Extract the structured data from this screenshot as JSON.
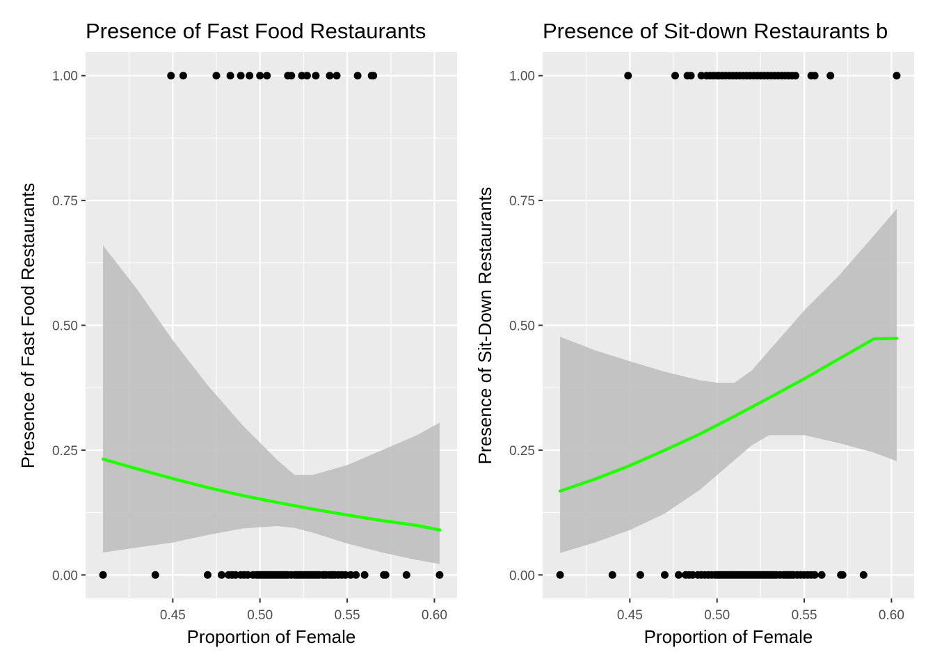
{
  "colors": {
    "panel_background": "#ebebeb",
    "grid": "#ffffff",
    "points": "#000000",
    "fit_line": "#22ff00",
    "confidence_band": "#bfbfbf"
  },
  "chart_data": [
    {
      "type": "scatter",
      "title": "Presence of Fast Food Restaurants",
      "xlabel": "Proportion of Female",
      "ylabel": "Presence of Fast Food Restaurants",
      "xlim": [
        0.4,
        0.613
      ],
      "ylim": [
        -0.047,
        1.047
      ],
      "x_ticks": [
        "0.45",
        "0.50",
        "0.55",
        "0.60"
      ],
      "y_ticks": [
        "0.00",
        "0.25",
        "0.50",
        "0.75",
        "1.00"
      ],
      "grid": true,
      "points_at_1": [
        0.449,
        0.456,
        0.475,
        0.483,
        0.489,
        0.494,
        0.5,
        0.504,
        0.516,
        0.518,
        0.524,
        0.527,
        0.532,
        0.54,
        0.544,
        0.556,
        0.564,
        0.565
      ],
      "points_at_0": [
        0.41,
        0.44,
        0.47,
        0.478,
        0.482,
        0.484,
        0.486,
        0.489,
        0.491,
        0.493,
        0.496,
        0.498,
        0.499,
        0.5,
        0.501,
        0.502,
        0.503,
        0.504,
        0.505,
        0.506,
        0.507,
        0.508,
        0.509,
        0.51,
        0.511,
        0.512,
        0.513,
        0.514,
        0.515,
        0.516,
        0.518,
        0.52,
        0.521,
        0.522,
        0.523,
        0.524,
        0.525,
        0.526,
        0.527,
        0.528,
        0.529,
        0.53,
        0.531,
        0.532,
        0.533,
        0.534,
        0.536,
        0.537,
        0.538,
        0.54,
        0.541,
        0.542,
        0.543,
        0.545,
        0.547,
        0.549,
        0.552,
        0.555,
        0.56,
        0.571,
        0.572,
        0.584,
        0.603
      ],
      "fit_line": {
        "x": [
          0.41,
          0.43,
          0.45,
          0.47,
          0.49,
          0.51,
          0.53,
          0.55,
          0.57,
          0.59,
          0.603
        ],
        "y": [
          0.232,
          0.212,
          0.193,
          0.175,
          0.159,
          0.145,
          0.132,
          0.12,
          0.109,
          0.099,
          0.09
        ]
      },
      "confidence_band": {
        "x": [
          0.41,
          0.43,
          0.45,
          0.47,
          0.49,
          0.51,
          0.52,
          0.53,
          0.55,
          0.57,
          0.59,
          0.603
        ],
        "upper": [
          0.66,
          0.57,
          0.47,
          0.38,
          0.3,
          0.23,
          0.2,
          0.2,
          0.22,
          0.25,
          0.28,
          0.305
        ],
        "lower": [
          0.045,
          0.055,
          0.065,
          0.08,
          0.093,
          0.098,
          0.094,
          0.085,
          0.063,
          0.045,
          0.03,
          0.022
        ]
      }
    },
    {
      "type": "scatter",
      "title": "Presence of Sit-down Restaurants b",
      "xlabel": "Proportion of Female",
      "ylabel": "Presence of Sit-Down Restaurants",
      "xlim": [
        0.4,
        0.613
      ],
      "ylim": [
        -0.047,
        1.047
      ],
      "x_ticks": [
        "0.45",
        "0.50",
        "0.55",
        "0.60"
      ],
      "y_ticks": [
        "0.00",
        "0.25",
        "0.50",
        "0.75",
        "1.00"
      ],
      "grid": true,
      "points_at_1": [
        0.449,
        0.476,
        0.483,
        0.485,
        0.491,
        0.494,
        0.496,
        0.498,
        0.5,
        0.501,
        0.503,
        0.505,
        0.507,
        0.509,
        0.511,
        0.513,
        0.515,
        0.517,
        0.519,
        0.521,
        0.523,
        0.525,
        0.527,
        0.529,
        0.531,
        0.533,
        0.535,
        0.537,
        0.539,
        0.541,
        0.543,
        0.545,
        0.554,
        0.556,
        0.565,
        0.603
      ],
      "points_at_0": [
        0.41,
        0.44,
        0.456,
        0.47,
        0.478,
        0.482,
        0.484,
        0.486,
        0.489,
        0.491,
        0.493,
        0.495,
        0.497,
        0.499,
        0.5,
        0.501,
        0.502,
        0.503,
        0.504,
        0.505,
        0.506,
        0.507,
        0.508,
        0.509,
        0.51,
        0.511,
        0.512,
        0.513,
        0.514,
        0.515,
        0.516,
        0.517,
        0.518,
        0.519,
        0.52,
        0.521,
        0.522,
        0.523,
        0.524,
        0.525,
        0.526,
        0.527,
        0.528,
        0.529,
        0.53,
        0.531,
        0.532,
        0.533,
        0.534,
        0.536,
        0.538,
        0.539,
        0.54,
        0.541,
        0.542,
        0.543,
        0.544,
        0.546,
        0.548,
        0.55,
        0.552,
        0.554,
        0.556,
        0.56,
        0.571,
        0.572,
        0.584
      ],
      "fit_line": {
        "x": [
          0.41,
          0.43,
          0.45,
          0.47,
          0.49,
          0.51,
          0.53,
          0.55,
          0.57,
          0.59,
          0.603
        ],
        "y": [
          0.168,
          0.192,
          0.219,
          0.25,
          0.282,
          0.318,
          0.355,
          0.393,
          0.433,
          0.473,
          0.474
        ]
      },
      "confidence_band": {
        "x": [
          0.41,
          0.43,
          0.45,
          0.47,
          0.49,
          0.5,
          0.51,
          0.52,
          0.53,
          0.55,
          0.57,
          0.59,
          0.603
        ],
        "upper": [
          0.477,
          0.45,
          0.428,
          0.407,
          0.39,
          0.385,
          0.385,
          0.41,
          0.45,
          0.53,
          0.6,
          0.68,
          0.733
        ],
        "lower": [
          0.044,
          0.065,
          0.09,
          0.123,
          0.17,
          0.2,
          0.23,
          0.26,
          0.28,
          0.28,
          0.264,
          0.245,
          0.228
        ]
      }
    }
  ]
}
